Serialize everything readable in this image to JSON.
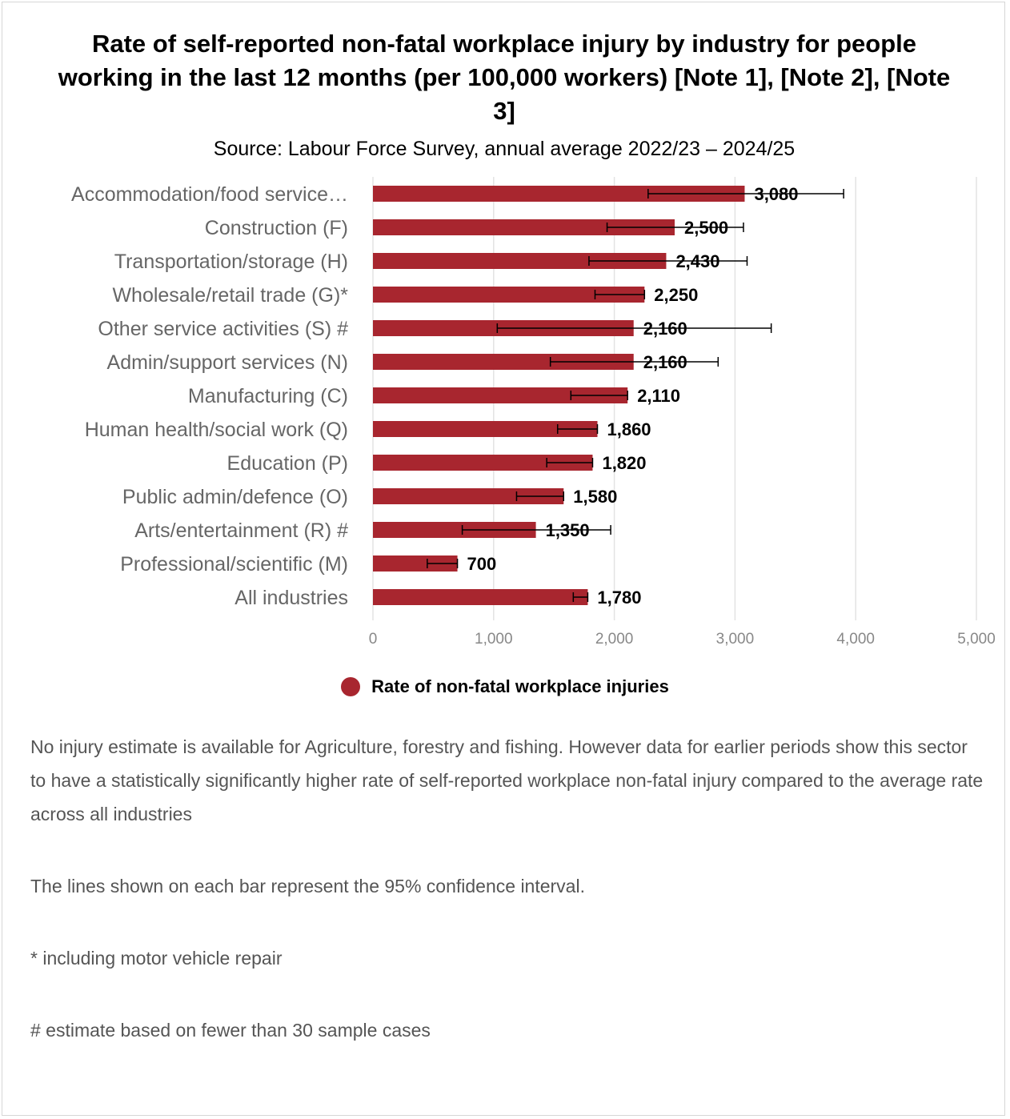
{
  "chart_data": {
    "type": "bar",
    "orientation": "horizontal",
    "title": "Rate of self-reported non-fatal workplace injury by industry for people working in the last 12 months (per 100,000 workers) [Note 1], [Note 2], [Note 3]",
    "subtitle": "Source: Labour Force Survey, annual average 2022/23 – 2024/25",
    "categories": [
      "Accommodation/food service…",
      "Construction (F)",
      "Transportation/storage (H)",
      "Wholesale/retail trade (G)*",
      "Other service activities (S) #",
      "Admin/support services (N)",
      "Manufacturing (C)",
      "Human health/social work (Q)",
      "Education (P)",
      "Public admin/defence (O)",
      "Arts/entertainment (R) #",
      "Professional/scientific (M)",
      "All industries"
    ],
    "series": [
      {
        "name": "Rate of non-fatal workplace injuries",
        "color": "#a8262f",
        "values": [
          3080,
          2500,
          2430,
          2250,
          2160,
          2160,
          2110,
          1860,
          1820,
          1580,
          1350,
          700,
          1780
        ],
        "value_labels": [
          "3,080",
          "2,500",
          "2,430",
          "2,250",
          "2,160",
          "2,160",
          "2,110",
          "1,860",
          "1,820",
          "1,580",
          "1,350",
          "700",
          "1,780"
        ],
        "ci_low": [
          2280,
          1940,
          1790,
          1840,
          1030,
          1470,
          1640,
          1530,
          1440,
          1190,
          740,
          450,
          1660
        ],
        "ci_high": [
          3900,
          3070,
          3100,
          2250,
          3300,
          2860,
          2110,
          1860,
          1820,
          1580,
          1970,
          700,
          1780
        ]
      }
    ],
    "xlim": [
      0,
      5000
    ],
    "xticks": [
      0,
      1000,
      2000,
      3000,
      4000,
      5000
    ],
    "xtick_labels": [
      "0",
      "1,000",
      "2,000",
      "3,000",
      "4,000",
      "5,000"
    ],
    "xlabel": "",
    "ylabel": "",
    "grid": true,
    "legend_position": "bottom"
  },
  "notes": [
    "No injury estimate is available for Agriculture, forestry and fishing. However data for earlier periods show this sector to have a statistically significantly higher rate of self-reported workplace non-fatal injury compared to the average rate across all industries",
    "The lines shown on each bar represent the 95% confidence interval.",
    "* including motor vehicle repair",
    "# estimate based on fewer than 30 sample cases"
  ],
  "colors": {
    "bar": "#a8262f",
    "grid": "#e3e3e3",
    "category_text": "#666666",
    "tick_text": "#888888",
    "note_text": "#555555"
  }
}
